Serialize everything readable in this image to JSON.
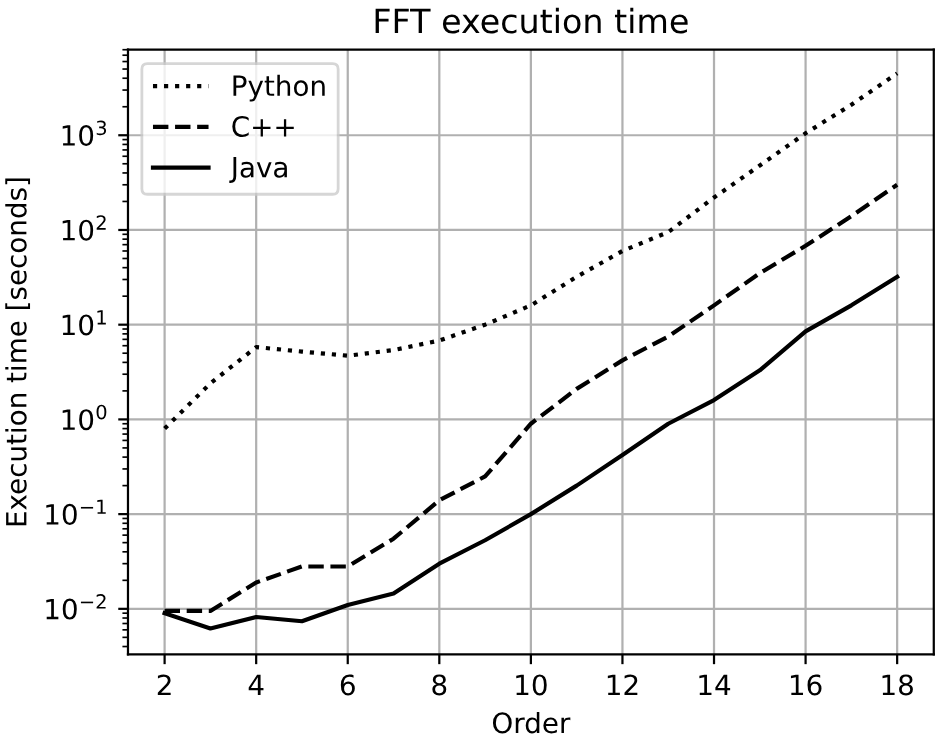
{
  "chart_data": {
    "type": "line",
    "title": "FFT execution time",
    "xlabel": "Order",
    "ylabel": "Execution time [seconds]",
    "x": [
      2,
      3,
      4,
      5,
      6,
      7,
      8,
      9,
      10,
      11,
      12,
      13,
      14,
      15,
      16,
      17,
      18
    ],
    "series": [
      {
        "name": "Python",
        "color": "#000000",
        "line_style": "dotted",
        "values": [
          0.8,
          2.4,
          5.8,
          5.2,
          4.7,
          5.4,
          6.8,
          10,
          16,
          32,
          60,
          95,
          220,
          480,
          1050,
          2100,
          4500
        ]
      },
      {
        "name": "C++",
        "color": "#000000",
        "line_style": "dashed",
        "values": [
          0.0095,
          0.0095,
          0.019,
          0.028,
          0.028,
          0.055,
          0.14,
          0.25,
          0.9,
          2.1,
          4.2,
          7.5,
          16,
          35,
          68,
          140,
          300
        ]
      },
      {
        "name": "Java",
        "color": "#000000",
        "line_style": "solid",
        "values": [
          0.009,
          0.0062,
          0.0082,
          0.0074,
          0.011,
          0.0145,
          0.03,
          0.053,
          0.1,
          0.2,
          0.42,
          0.9,
          1.6,
          3.3,
          8.5,
          16,
          32
        ]
      }
    ],
    "log": "y",
    "xlim": [
      1.2,
      18.8
    ],
    "xticks": [
      2,
      4,
      6,
      8,
      10,
      12,
      14,
      16,
      18
    ],
    "ylim": [
      0.0033,
      8000
    ],
    "yticks": [
      {
        "value": 0.01,
        "label": "10$^{−2}$"
      },
      {
        "value": 0.1,
        "label": "10$^{−1}$"
      },
      {
        "value": 1,
        "label": "10$^{0}$"
      },
      {
        "value": 10,
        "label": "10$^{1}$"
      },
      {
        "value": 100,
        "label": "10$^{2}$"
      },
      {
        "value": 1000,
        "label": "10$^{3}$"
      }
    ],
    "grid": true,
    "legend": "top left",
    "marker": "none"
  }
}
